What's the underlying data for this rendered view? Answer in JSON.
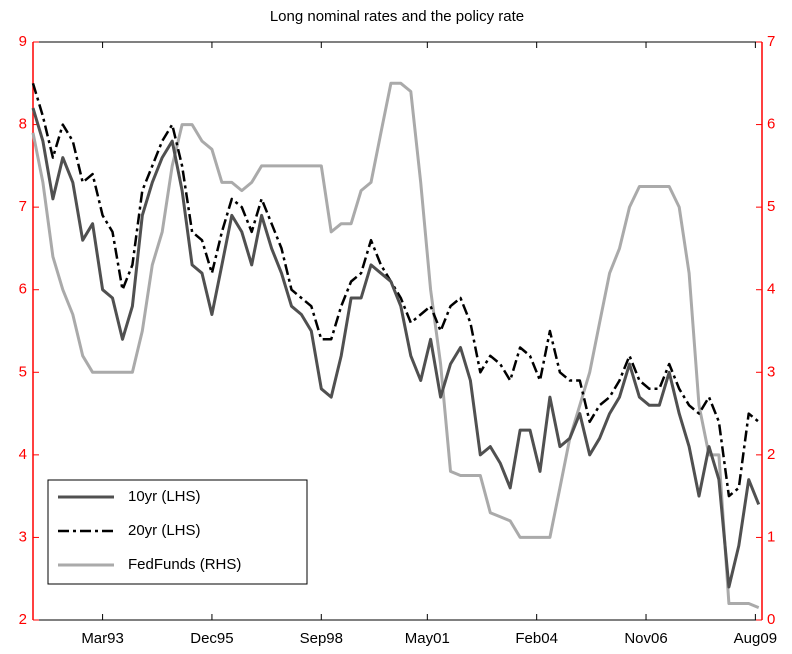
{
  "chart_data": {
    "type": "line",
    "title": "Long nominal rates and the policy rate",
    "x": [
      "Jun91",
      "Sep91",
      "Dec91",
      "Mar92",
      "Jun92",
      "Sep92",
      "Dec92",
      "Mar93",
      "Jun93",
      "Sep93",
      "Dec93",
      "Mar94",
      "Jun94",
      "Sep94",
      "Dec94",
      "Mar95",
      "Jun95",
      "Sep95",
      "Dec95",
      "Mar96",
      "Jun96",
      "Sep96",
      "Dec96",
      "Mar97",
      "Jun97",
      "Sep97",
      "Dec97",
      "Mar98",
      "Jun98",
      "Sep98",
      "Dec98",
      "Mar99",
      "Jun99",
      "Sep99",
      "Dec99",
      "Mar00",
      "Jun00",
      "Sep00",
      "Dec00",
      "Mar01",
      "Jun01",
      "Sep01",
      "Dec01",
      "Mar02",
      "Jun02",
      "Sep02",
      "Dec02",
      "Mar03",
      "Jun03",
      "Sep03",
      "Dec03",
      "Mar04",
      "Jun04",
      "Sep04",
      "Dec04",
      "Mar05",
      "Jun05",
      "Sep05",
      "Dec05",
      "Mar06",
      "Jun06",
      "Sep06",
      "Dec06",
      "Mar07",
      "Jun07",
      "Sep07",
      "Dec07",
      "Mar08",
      "Jun08",
      "Sep08",
      "Dec08",
      "Mar09",
      "Jun09",
      "Sep09"
    ],
    "xlim": [
      "Jun91",
      "Oct09"
    ],
    "xticks": [
      "Mar93",
      "Dec95",
      "Sep98",
      "May01",
      "Feb04",
      "Nov06",
      "Aug09"
    ],
    "ylim": [
      2,
      9
    ],
    "yticks": [
      2,
      3,
      4,
      5,
      6,
      7,
      8,
      9
    ],
    "y2lim": [
      0,
      7
    ],
    "y2ticks": [
      0,
      1,
      2,
      3,
      4,
      5,
      6,
      7
    ],
    "axis_color": "#ff0000",
    "legend": "lower left",
    "series": [
      {
        "name": "10yr (LHS)",
        "color": "#505050",
        "style": "solid",
        "values": [
          8.2,
          7.8,
          7.1,
          7.6,
          7.3,
          6.6,
          6.8,
          6.0,
          5.9,
          5.4,
          5.8,
          6.9,
          7.3,
          7.6,
          7.8,
          7.2,
          6.3,
          6.2,
          5.7,
          6.3,
          6.9,
          6.7,
          6.3,
          6.9,
          6.5,
          6.2,
          5.8,
          5.7,
          5.5,
          4.8,
          4.7,
          5.2,
          5.9,
          5.9,
          6.3,
          6.2,
          6.1,
          5.8,
          5.2,
          4.9,
          5.4,
          4.7,
          5.1,
          5.3,
          4.9,
          4.0,
          4.1,
          3.9,
          3.6,
          4.3,
          4.3,
          3.8,
          4.7,
          4.1,
          4.2,
          4.5,
          4.0,
          4.2,
          4.5,
          4.7,
          5.1,
          4.7,
          4.6,
          4.6,
          5.0,
          4.5,
          4.1,
          3.5,
          4.1,
          3.7,
          2.4,
          2.9,
          3.7,
          3.4
        ]
      },
      {
        "name": "20yr (LHS)",
        "color": "#000000",
        "style": "dashdot",
        "values": [
          8.5,
          8.1,
          7.6,
          8.0,
          7.8,
          7.3,
          7.4,
          6.9,
          6.7,
          6.0,
          6.3,
          7.2,
          7.5,
          7.8,
          8.0,
          7.5,
          6.7,
          6.6,
          6.2,
          6.7,
          7.1,
          7.0,
          6.7,
          7.1,
          6.8,
          6.5,
          6.0,
          5.9,
          5.8,
          5.4,
          5.4,
          5.8,
          6.1,
          6.2,
          6.6,
          6.3,
          6.1,
          5.9,
          5.6,
          5.7,
          5.8,
          5.5,
          5.8,
          5.9,
          5.6,
          5.0,
          5.2,
          5.1,
          4.9,
          5.3,
          5.2,
          4.9,
          5.5,
          5.0,
          4.9,
          4.9,
          4.4,
          4.6,
          4.7,
          4.9,
          5.2,
          4.9,
          4.8,
          4.8,
          5.1,
          4.8,
          4.6,
          4.5,
          4.7,
          4.4,
          3.5,
          3.6,
          4.5,
          4.4
        ]
      },
      {
        "name": "FedFunds (RHS)",
        "color": "#aaaaaa",
        "style": "solid",
        "axis": "y2",
        "values": [
          5.9,
          5.3,
          4.4,
          4.0,
          3.7,
          3.2,
          3.0,
          3.0,
          3.0,
          3.0,
          3.0,
          3.5,
          4.3,
          4.7,
          5.5,
          6.0,
          6.0,
          5.8,
          5.7,
          5.3,
          5.3,
          5.2,
          5.3,
          5.5,
          5.5,
          5.5,
          5.5,
          5.5,
          5.5,
          5.5,
          4.7,
          4.8,
          4.8,
          5.2,
          5.3,
          5.9,
          6.5,
          6.5,
          6.4,
          5.3,
          4.0,
          3.1,
          1.8,
          1.75,
          1.75,
          1.75,
          1.3,
          1.25,
          1.2,
          1.0,
          1.0,
          1.0,
          1.0,
          1.6,
          2.2,
          2.6,
          3.0,
          3.6,
          4.2,
          4.5,
          5.0,
          5.25,
          5.25,
          5.25,
          5.25,
          5.0,
          4.2,
          2.6,
          2.0,
          2.0,
          0.2,
          0.2,
          0.2,
          0.15
        ]
      }
    ]
  }
}
